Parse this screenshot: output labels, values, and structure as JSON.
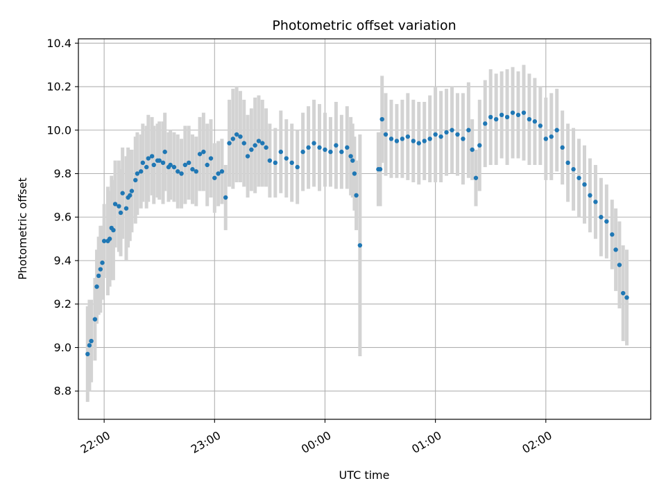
{
  "chart_data": {
    "type": "scatter",
    "title": "Photometric offset variation",
    "xlabel": "UTC time",
    "ylabel": "Photometric offset",
    "x_ticks": [
      "22:00",
      "23:00",
      "00:00",
      "01:00",
      "02:00"
    ],
    "y_ticks": [
      "8.8",
      "9.0",
      "9.2",
      "9.4",
      "9.6",
      "9.8",
      "10.0",
      "10.2",
      "10.4"
    ],
    "xlim": [
      "21:46",
      "02:57"
    ],
    "ylim": [
      8.67,
      10.42
    ],
    "grid": true,
    "colors": {
      "points": "#1f77b4",
      "errorbars": "#d3d3d3",
      "grid": "#b0b0b0"
    },
    "series": [
      {
        "x": [
          "21:51",
          "21:52",
          "21:53",
          "21:55",
          "21:56",
          "21:57",
          "21:58",
          "21:59",
          "22:00",
          "22:02",
          "22:03",
          "22:04",
          "22:05",
          "22:06",
          "22:08",
          "22:09",
          "22:10",
          "22:12",
          "22:13",
          "22:14",
          "22:15",
          "22:17",
          "22:18",
          "22:20",
          "22:21",
          "22:23",
          "22:24",
          "22:26",
          "22:27",
          "22:29",
          "22:30",
          "22:32",
          "22:33",
          "22:35",
          "22:36",
          "22:38",
          "22:40",
          "22:42",
          "22:44",
          "22:46",
          "22:48",
          "22:50",
          "22:52",
          "22:54",
          "22:56",
          "22:58",
          "23:00",
          "23:02",
          "23:04",
          "23:06",
          "23:08",
          "23:10",
          "23:12",
          "23:14",
          "23:16",
          "23:18",
          "23:20",
          "23:22",
          "23:24",
          "23:26",
          "23:28",
          "23:30",
          "23:33",
          "23:36",
          "23:39",
          "23:42",
          "23:45",
          "23:48",
          "23:51",
          "23:54",
          "23:57",
          "00:00",
          "00:03",
          "00:06",
          "00:09",
          "00:12",
          "00:14",
          "00:15",
          "00:16",
          "00:17",
          "00:19",
          "00:29",
          "00:30",
          "00:31",
          "00:33",
          "00:36",
          "00:39",
          "00:42",
          "00:45",
          "00:48",
          "00:51",
          "00:54",
          "00:57",
          "01:00",
          "01:03",
          "01:06",
          "01:09",
          "01:12",
          "01:15",
          "01:18",
          "01:20",
          "01:22",
          "01:24",
          "01:27",
          "01:30",
          "01:33",
          "01:36",
          "01:39",
          "01:42",
          "01:45",
          "01:48",
          "01:51",
          "01:54",
          "01:57",
          "02:00",
          "02:03",
          "02:06",
          "02:09",
          "02:12",
          "02:15",
          "02:18",
          "02:21",
          "02:24",
          "02:27",
          "02:30",
          "02:33",
          "02:36",
          "02:38",
          "02:40",
          "02:42",
          "02:44"
        ],
        "y": [
          8.97,
          9.01,
          9.03,
          9.13,
          9.28,
          9.33,
          9.36,
          9.39,
          9.49,
          9.49,
          9.5,
          9.55,
          9.54,
          9.66,
          9.65,
          9.62,
          9.71,
          9.64,
          9.69,
          9.7,
          9.72,
          9.77,
          9.8,
          9.81,
          9.85,
          9.83,
          9.87,
          9.88,
          9.84,
          9.86,
          9.86,
          9.85,
          9.9,
          9.83,
          9.84,
          9.83,
          9.81,
          9.8,
          9.84,
          9.85,
          9.82,
          9.81,
          9.89,
          9.9,
          9.84,
          9.87,
          9.78,
          9.8,
          9.81,
          9.69,
          9.94,
          9.96,
          9.98,
          9.97,
          9.94,
          9.88,
          9.91,
          9.93,
          9.95,
          9.94,
          9.92,
          9.86,
          9.85,
          9.9,
          9.87,
          9.85,
          9.83,
          9.9,
          9.92,
          9.94,
          9.92,
          9.91,
          9.9,
          9.93,
          9.9,
          9.92,
          9.88,
          9.86,
          9.8,
          9.7,
          9.47,
          9.82,
          9.82,
          10.05,
          9.98,
          9.96,
          9.95,
          9.96,
          9.97,
          9.95,
          9.94,
          9.95,
          9.96,
          9.98,
          9.97,
          9.99,
          10.0,
          9.98,
          9.96,
          10.0,
          9.91,
          9.78,
          9.93,
          10.03,
          10.06,
          10.05,
          10.07,
          10.06,
          10.08,
          10.07,
          10.08,
          10.05,
          10.04,
          10.02,
          9.96,
          9.97,
          10.0,
          9.92,
          9.85,
          9.82,
          9.78,
          9.75,
          9.7,
          9.67,
          9.6,
          9.58,
          9.52,
          9.45,
          9.38,
          9.25,
          9.23
        ],
        "err": [
          0.22,
          0.21,
          0.19,
          0.19,
          0.17,
          0.18,
          0.2,
          0.17,
          0.17,
          0.25,
          0.22,
          0.24,
          0.23,
          0.2,
          0.21,
          0.2,
          0.21,
          0.24,
          0.23,
          0.21,
          0.19,
          0.2,
          0.19,
          0.17,
          0.18,
          0.19,
          0.2,
          0.18,
          0.18,
          0.17,
          0.18,
          0.19,
          0.18,
          0.16,
          0.16,
          0.16,
          0.17,
          0.16,
          0.18,
          0.17,
          0.16,
          0.16,
          0.17,
          0.18,
          0.19,
          0.18,
          0.16,
          0.15,
          0.15,
          0.15,
          0.2,
          0.23,
          0.22,
          0.21,
          0.2,
          0.19,
          0.19,
          0.22,
          0.21,
          0.2,
          0.18,
          0.17,
          0.16,
          0.19,
          0.18,
          0.18,
          0.17,
          0.18,
          0.19,
          0.2,
          0.2,
          0.17,
          0.16,
          0.2,
          0.17,
          0.19,
          0.18,
          0.17,
          0.17,
          0.16,
          0.51,
          0.17,
          0.17,
          0.2,
          0.19,
          0.18,
          0.17,
          0.18,
          0.2,
          0.19,
          0.19,
          0.18,
          0.2,
          0.22,
          0.21,
          0.2,
          0.2,
          0.19,
          0.21,
          0.22,
          0.14,
          0.13,
          0.21,
          0.2,
          0.22,
          0.21,
          0.2,
          0.22,
          0.21,
          0.2,
          0.22,
          0.21,
          0.2,
          0.18,
          0.19,
          0.2,
          0.19,
          0.17,
          0.18,
          0.19,
          0.18,
          0.18,
          0.17,
          0.17,
          0.18,
          0.17,
          0.16,
          0.19,
          0.2,
          0.22,
          0.22
        ]
      }
    ]
  }
}
